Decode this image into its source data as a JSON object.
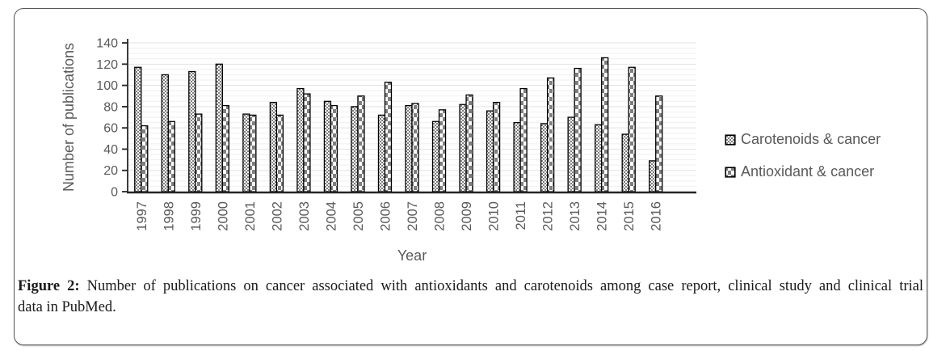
{
  "figure": {
    "caption": {
      "label": "Figure 2:",
      "line1": "Number of publications on cancer associated with antioxidants and carotenoids among case report, clinical study and clinical trial",
      "line2": "data in PubMed."
    }
  },
  "legend": {
    "items": [
      {
        "label": "Carotenoids & cancer",
        "pattern": "fine-checker"
      },
      {
        "label": "Antioxidant & cancer",
        "pattern": "coarse-checker"
      }
    ]
  },
  "chart_data": {
    "type": "bar",
    "title": "",
    "xlabel": "Year",
    "ylabel": "Number of publications",
    "ylim": [
      0,
      140
    ],
    "ytick_step": 20,
    "grid": "horizontal minor gridlines every 5 units",
    "legend_position": "right",
    "categories": [
      "1997",
      "1998",
      "1999",
      "2000",
      "2001",
      "2002",
      "2003",
      "2004",
      "2005",
      "2006",
      "2007",
      "2008",
      "2009",
      "2010",
      "2011",
      "2012",
      "2013",
      "2014",
      "2015",
      "2016"
    ],
    "series": [
      {
        "name": "Carotenoids & cancer",
        "pattern": "fine-checker",
        "values": [
          117,
          110,
          113,
          120,
          73,
          84,
          97,
          85,
          80,
          72,
          81,
          66,
          82,
          76,
          65,
          64,
          70,
          63,
          54,
          29
        ]
      },
      {
        "name": "Antioxidant & cancer",
        "pattern": "coarse-checker",
        "values": [
          62,
          66,
          73,
          81,
          72,
          72,
          92,
          81,
          90,
          103,
          83,
          77,
          91,
          84,
          97,
          107,
          116,
          126,
          117,
          90
        ]
      }
    ],
    "colors": {
      "pattern_gray": "#7f7f7f",
      "bar_outline": "#000000",
      "axis_line": "#262626",
      "axis_text": "#595959",
      "gridline_minor": "#efefef",
      "gridline_major": "#e3e3e3"
    }
  }
}
